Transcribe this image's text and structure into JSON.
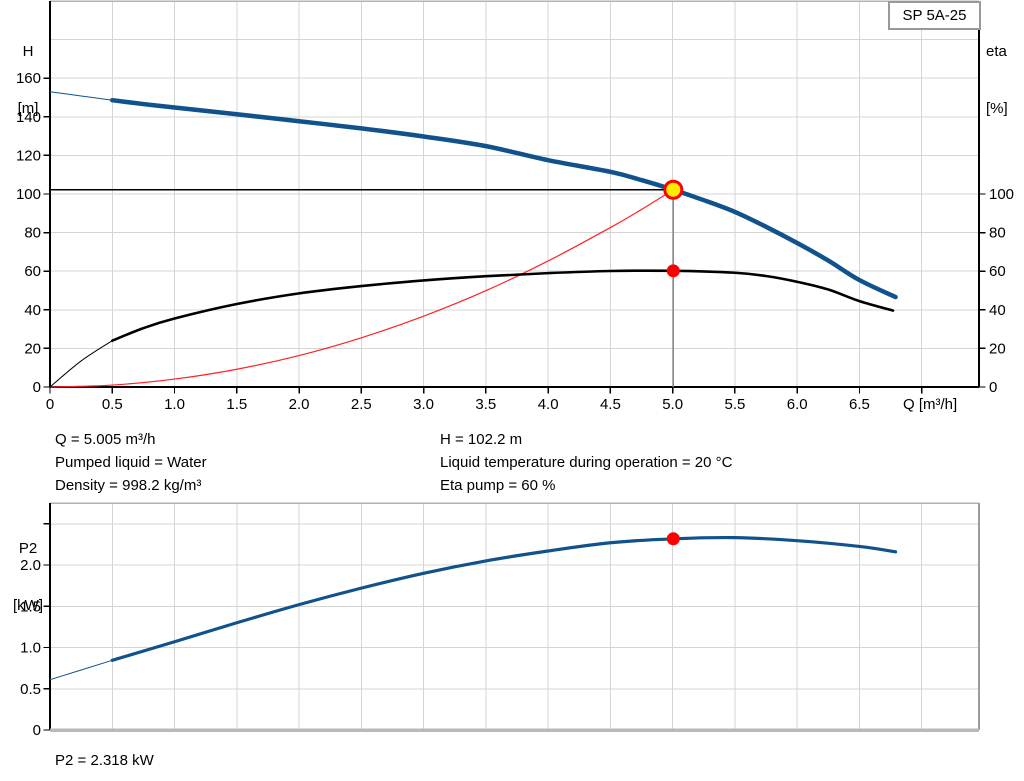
{
  "badge": "SP 5A-25",
  "labels": {
    "h_axis_1": "H",
    "h_axis_2": "[m]",
    "eta_axis_1": "eta",
    "eta_axis_2": "[%]",
    "q_axis": "Q [m³/h]",
    "p2_axis_1": "P2",
    "p2_axis_2": "[kW]"
  },
  "info": {
    "left": [
      "Q = 5.005 m³/h",
      "Pumped liquid = Water",
      "Density = 998.2 kg/m³"
    ],
    "right": [
      "H = 102.2 m",
      "Liquid temperature during operation = 20 °C",
      "Eta pump = 60 %"
    ]
  },
  "p2_result": "P2 = 2.318 kW",
  "colors": {
    "curve_blue": "#11528c",
    "curve_black": "#000000",
    "system_red": "#ff2222",
    "grid": "#d4d4d4",
    "frame_gray": "#b2b2b2",
    "axis_black": "#000000",
    "duty_vline": "#8a8a8a",
    "duty_hline": "#000000",
    "marker_red": "#ff0000",
    "marker_yellow": "#ffeb00"
  },
  "chart_data": [
    {
      "type": "line",
      "id": "head-efficiency-chart",
      "xlabel": "Q [m³/h]",
      "ylabel_left": "H [m]",
      "ylabel_right": "eta [%]",
      "x_domain": [
        0,
        7.46
      ],
      "y_domain": [
        0,
        200
      ],
      "x_grid": [
        0.5,
        1,
        1.5,
        2,
        2.5,
        3,
        3.5,
        4,
        4.5,
        5,
        5.5,
        6,
        6.5,
        7
      ],
      "y_grid": [
        20,
        40,
        60,
        80,
        100,
        120,
        140,
        160,
        180
      ],
      "x_ticks": [
        [
          0,
          "0"
        ],
        [
          0.5,
          "0.5"
        ],
        [
          1,
          "1.0"
        ],
        [
          1.5,
          "1.5"
        ],
        [
          2,
          "2.0"
        ],
        [
          2.5,
          "2.5"
        ],
        [
          3,
          "3.0"
        ],
        [
          3.5,
          "3.5"
        ],
        [
          4,
          "4.0"
        ],
        [
          4.5,
          "4.5"
        ],
        [
          5,
          "5.0"
        ],
        [
          5.5,
          "5.5"
        ],
        [
          6,
          "6.0"
        ],
        [
          6.5,
          "6.5"
        ],
        [
          7,
          null
        ]
      ],
      "y_left_ticks": [
        [
          0,
          "0"
        ],
        [
          20,
          "20"
        ],
        [
          40,
          "40"
        ],
        [
          60,
          "60"
        ],
        [
          80,
          "80"
        ],
        [
          100,
          "100"
        ],
        [
          120,
          "120"
        ],
        [
          140,
          "140"
        ],
        [
          160,
          "160"
        ]
      ],
      "y_right_ticks": [
        [
          0,
          "0"
        ],
        [
          20,
          "20"
        ],
        [
          40,
          "40"
        ],
        [
          60,
          "60"
        ],
        [
          80,
          "80"
        ],
        [
          100,
          "100"
        ]
      ],
      "ref_lines": [
        {
          "name": "duty-hline",
          "type": "h",
          "y": 102.2,
          "x1": 0,
          "x2": 5.005,
          "color_key": "duty_hline",
          "width": 1.3
        },
        {
          "name": "duty-vline",
          "type": "v",
          "x": 5.005,
          "y1": 0,
          "y2": 102.2,
          "color_key": "duty_vline",
          "width": 1.8
        }
      ],
      "series": [
        {
          "name": "system-curve",
          "color_key": "system_red",
          "width": 1.2,
          "thin_until": null,
          "thin_width": 1.2,
          "points": [
            [
              0,
              0
            ],
            [
              0.5,
              1
            ],
            [
              1,
              4.1
            ],
            [
              1.5,
              9.2
            ],
            [
              2,
              16.3
            ],
            [
              2.5,
              25.5
            ],
            [
              3,
              36.7
            ],
            [
              3.5,
              49.9
            ],
            [
              4,
              65.3
            ],
            [
              4.5,
              82.6
            ],
            [
              4.75,
              92
            ],
            [
              5.005,
              102.2
            ]
          ]
        },
        {
          "name": "eta-curve",
          "color_key": "curve_black",
          "width": 2.6,
          "thin_until": 0.5,
          "thin_width": 1,
          "points": [
            [
              0,
              0
            ],
            [
              0.25,
              13.5
            ],
            [
              0.5,
              24
            ],
            [
              0.75,
              30.5
            ],
            [
              1,
              35.5
            ],
            [
              1.5,
              43
            ],
            [
              2,
              48.5
            ],
            [
              2.5,
              52.3
            ],
            [
              3,
              55.2
            ],
            [
              3.5,
              57.4
            ],
            [
              4,
              59
            ],
            [
              4.5,
              60.1
            ],
            [
              5.005,
              60.2
            ],
            [
              5.5,
              59.2
            ],
            [
              5.75,
              57.5
            ],
            [
              6,
              54.5
            ],
            [
              6.25,
              50.5
            ],
            [
              6.5,
              44.5
            ],
            [
              6.77,
              39.6
            ]
          ]
        },
        {
          "name": "pump-curve",
          "color_key": "curve_blue",
          "width": 4.5,
          "thin_until": 0.5,
          "thin_width": 1,
          "points": [
            [
              0,
              153
            ],
            [
              0.25,
              150.8
            ],
            [
              0.5,
              148.6
            ],
            [
              0.75,
              146.6
            ],
            [
              1,
              144.8
            ],
            [
              1.5,
              141.3
            ],
            [
              2,
              137.7
            ],
            [
              2.5,
              134
            ],
            [
              3,
              129.8
            ],
            [
              3.5,
              124.8
            ],
            [
              4,
              117.5
            ],
            [
              4.5,
              111.5
            ],
            [
              4.75,
              107.2
            ],
            [
              5.005,
              102.2
            ],
            [
              5.25,
              96.8
            ],
            [
              5.5,
              90.7
            ],
            [
              5.75,
              83
            ],
            [
              6,
              74.6
            ],
            [
              6.25,
              65.5
            ],
            [
              6.5,
              55.4
            ],
            [
              6.79,
              46.6
            ]
          ]
        }
      ],
      "markers": [
        {
          "name": "duty-point-marker",
          "x": 5.005,
          "y": 102.2,
          "r": 8.5,
          "fill_key": "marker_yellow",
          "stroke_key": "marker_red",
          "stroke_width": 3
        },
        {
          "name": "eta-point-marker",
          "x": 5.005,
          "y": 60.2,
          "r": 6.5,
          "fill_key": "marker_red",
          "stroke_key": null,
          "stroke_width": 0
        }
      ]
    },
    {
      "type": "line",
      "id": "power-chart",
      "xlabel": "",
      "ylabel_left": "P2 [kW]",
      "x_domain": [
        0,
        7.46
      ],
      "y_domain": [
        0,
        2.752
      ],
      "x_grid": [
        0.5,
        1,
        1.5,
        2,
        2.5,
        3,
        3.5,
        4,
        4.5,
        5,
        5.5,
        6,
        6.5,
        7
      ],
      "y_grid": [
        0.5,
        1,
        1.5,
        2,
        2.5
      ],
      "x_ticks": [],
      "y_left_ticks": [
        [
          0,
          "0"
        ],
        [
          0.5,
          "0.5"
        ],
        [
          1,
          "1.0"
        ],
        [
          1.5,
          "1.5"
        ],
        [
          2,
          "2.0"
        ],
        [
          2.5,
          null
        ]
      ],
      "ref_lines": [],
      "series": [
        {
          "name": "p2-curve",
          "color_key": "curve_blue",
          "width": 3.2,
          "thin_until": 0.5,
          "thin_width": 1,
          "points": [
            [
              0,
              0.61
            ],
            [
              0.5,
              0.845
            ],
            [
              1,
              1.07
            ],
            [
              1.5,
              1.3
            ],
            [
              2,
              1.52
            ],
            [
              2.5,
              1.72
            ],
            [
              3,
              1.9
            ],
            [
              3.5,
              2.05
            ],
            [
              4,
              2.17
            ],
            [
              4.5,
              2.27
            ],
            [
              5.005,
              2.318
            ],
            [
              5.5,
              2.332
            ],
            [
              6,
              2.295
            ],
            [
              6.5,
              2.225
            ],
            [
              6.79,
              2.16
            ]
          ]
        }
      ],
      "markers": [
        {
          "name": "p2-point-marker",
          "x": 5.005,
          "y": 2.318,
          "r": 6.5,
          "fill_key": "marker_red",
          "stroke_key": null,
          "stroke_width": 0
        }
      ]
    }
  ]
}
